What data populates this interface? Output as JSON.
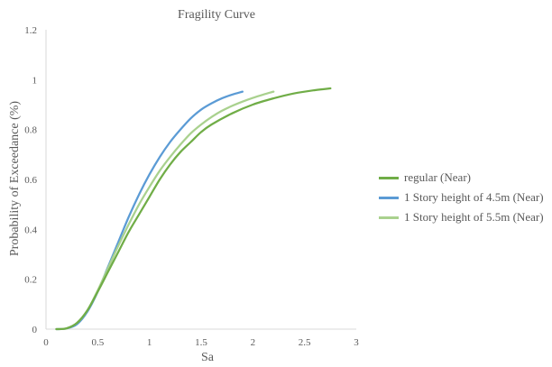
{
  "chart_data": {
    "type": "line",
    "title": "Fragility Curve",
    "xlabel": "Sa",
    "ylabel": "Probability of Exceedance (%)",
    "xlim": [
      0,
      3
    ],
    "ylim": [
      0,
      1.2
    ],
    "xticks": [
      "0",
      "0.5",
      "1",
      "1.5",
      "2",
      "2.5",
      "3"
    ],
    "yticks": [
      "0",
      "0.2",
      "0.4",
      "0.6",
      "0.8",
      "1",
      "1.2"
    ],
    "grid": false,
    "legend_position": "right",
    "series": [
      {
        "name": "regular (Near)",
        "color": "#70ad47",
        "x": [
          0.1,
          0.2,
          0.3,
          0.4,
          0.5,
          0.6,
          0.7,
          0.8,
          0.9,
          1.0,
          1.1,
          1.2,
          1.3,
          1.4,
          1.5,
          1.6,
          1.8,
          2.0,
          2.2,
          2.4,
          2.6,
          2.75
        ],
        "y": [
          0.0,
          0.003,
          0.025,
          0.075,
          0.15,
          0.23,
          0.31,
          0.39,
          0.46,
          0.53,
          0.6,
          0.66,
          0.71,
          0.75,
          0.79,
          0.82,
          0.865,
          0.9,
          0.925,
          0.945,
          0.958,
          0.965
        ]
      },
      {
        "name": "1 Story height of 4.5m (Near)",
        "color": "#5b9bd5",
        "x": [
          0.1,
          0.2,
          0.3,
          0.4,
          0.5,
          0.6,
          0.7,
          0.8,
          0.9,
          1.0,
          1.1,
          1.2,
          1.3,
          1.4,
          1.5,
          1.6,
          1.7,
          1.8,
          1.9
        ],
        "y": [
          0.0,
          0.003,
          0.02,
          0.07,
          0.15,
          0.25,
          0.35,
          0.45,
          0.54,
          0.62,
          0.69,
          0.75,
          0.8,
          0.845,
          0.88,
          0.905,
          0.925,
          0.94,
          0.952
        ]
      },
      {
        "name": "1 Story height of 5.5m (Near)",
        "color": "#a9d18e",
        "x": [
          0.1,
          0.2,
          0.3,
          0.4,
          0.5,
          0.6,
          0.7,
          0.8,
          0.9,
          1.0,
          1.1,
          1.2,
          1.3,
          1.4,
          1.5,
          1.6,
          1.7,
          1.8,
          1.9,
          2.0,
          2.1,
          2.2
        ],
        "y": [
          0.0,
          0.004,
          0.025,
          0.075,
          0.155,
          0.245,
          0.335,
          0.42,
          0.5,
          0.57,
          0.635,
          0.69,
          0.74,
          0.785,
          0.82,
          0.85,
          0.875,
          0.895,
          0.912,
          0.927,
          0.94,
          0.952
        ]
      }
    ]
  }
}
